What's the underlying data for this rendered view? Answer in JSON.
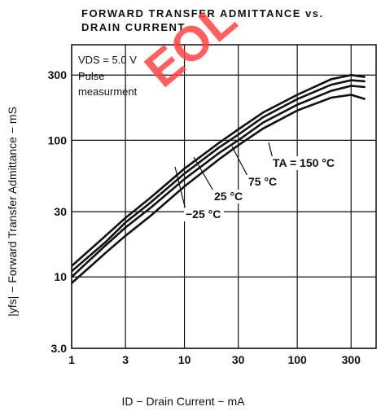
{
  "chart_data": {
    "type": "line",
    "title": [
      "FORWARD TRANSFER ADMITTANCE vs.",
      "DRAIN CURRENT"
    ],
    "xlabel": "ID − Drain Current − mA",
    "ylabel": "|yfs| − Forward Transfer Admittance − mS",
    "annotations": [
      "VDS = 5.0 V",
      "Pulse",
      "measurment"
    ],
    "watermark": "EOL",
    "xscale": "log",
    "yscale": "log",
    "grid": true,
    "xlim": [
      1,
      500
    ],
    "ylim": [
      3,
      500
    ],
    "xticks": [
      1,
      3,
      10,
      30,
      100,
      300
    ],
    "yticks": [
      {
        "value": 3,
        "label": "3.0"
      },
      10,
      30,
      100,
      300
    ],
    "x": [
      1,
      2,
      3,
      5,
      10,
      20,
      30,
      50,
      100,
      200,
      300,
      400
    ],
    "series": [
      {
        "name": "TA = 150 °C",
        "color": "#111111",
        "values": [
          12,
          20,
          27,
          38,
          62,
          95,
          120,
          160,
          215,
          280,
          300,
          290
        ]
      },
      {
        "name": "75 °C",
        "color": "#111111",
        "values": [
          11,
          18,
          25,
          35,
          57,
          88,
          110,
          148,
          200,
          255,
          275,
          270
        ]
      },
      {
        "name": "25 °C",
        "color": "#111111",
        "values": [
          10,
          17,
          23,
          32,
          52,
          80,
          100,
          135,
          182,
          230,
          250,
          245
        ]
      },
      {
        "name": "−25 °C",
        "color": "#111111",
        "values": [
          9,
          15,
          20,
          28,
          46,
          72,
          92,
          122,
          165,
          205,
          215,
          200
        ]
      }
    ]
  }
}
